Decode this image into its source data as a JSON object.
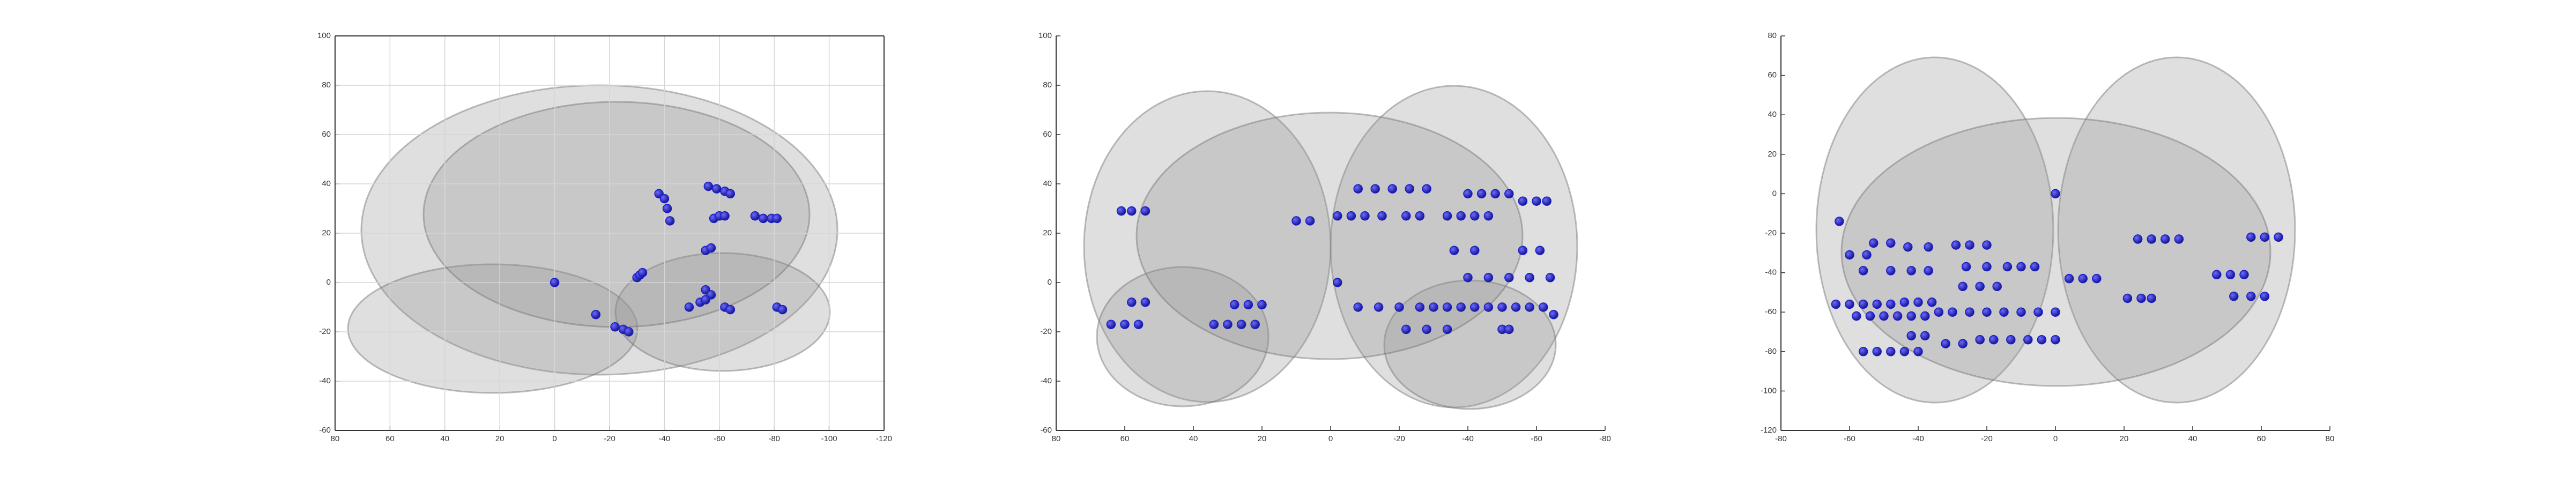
{
  "chart_data": [
    {
      "type": "scatter",
      "color": "#1c1cc8",
      "grid": true,
      "xlim": [
        80,
        -120
      ],
      "xticks": [
        80,
        60,
        40,
        20,
        0,
        -20,
        -40,
        -60,
        -80,
        -100,
        -120
      ],
      "ylim": [
        -60,
        100
      ],
      "yticks": [
        -60,
        -40,
        -20,
        0,
        20,
        40,
        60,
        80,
        100
      ],
      "x": [
        0,
        -38,
        -40,
        -41,
        -42,
        -56,
        -59,
        -62,
        -64,
        -58,
        -60,
        -62,
        -73,
        -76,
        -79,
        -81,
        -55,
        -57,
        -30,
        -31,
        -32,
        -55,
        -57,
        -15,
        -22,
        -25,
        -27,
        -49,
        -53,
        -55,
        -62,
        -64,
        -81,
        -83
      ],
      "values": [
        0,
        36,
        34,
        30,
        25,
        39,
        38,
        37,
        36,
        26,
        27,
        27,
        27,
        26,
        26,
        26,
        13,
        14,
        2,
        3,
        4,
        -3,
        -5,
        -13,
        -18,
        -19,
        -20,
        -10,
        -8,
        -7,
        -10,
        -11,
        -10,
        -11
      ]
    },
    {
      "type": "scatter",
      "color": "#1c1cc8",
      "grid": false,
      "xlim": [
        80,
        -80
      ],
      "xticks": [
        80,
        60,
        40,
        20,
        0,
        -20,
        -40,
        -60,
        -80
      ],
      "ylim": [
        -60,
        100
      ],
      "yticks": [
        -60,
        -40,
        -20,
        0,
        20,
        40,
        60,
        80,
        100
      ],
      "x": [
        61,
        58,
        54,
        10,
        6,
        -2,
        -6,
        -10,
        -15,
        -22,
        -26,
        -8,
        -13,
        -18,
        -23,
        -28,
        -34,
        -38,
        -42,
        -46,
        -40,
        -44,
        -48,
        -52,
        -56,
        -60,
        -63,
        -36,
        -42,
        -56,
        -61,
        -40,
        -46,
        -52,
        -58,
        -64,
        -2,
        -8,
        -14,
        -20,
        -26,
        -30,
        -34,
        -38,
        -42,
        -46,
        -50,
        -54,
        -58,
        -62,
        -22,
        -28,
        -34,
        -50,
        -52,
        -65,
        58,
        54,
        64,
        60,
        56,
        34,
        30,
        26,
        22,
        28,
        24,
        20
      ],
      "values": [
        29,
        29,
        29,
        25,
        25,
        27,
        27,
        27,
        27,
        27,
        27,
        38,
        38,
        38,
        38,
        38,
        27,
        27,
        27,
        27,
        36,
        36,
        36,
        36,
        33,
        33,
        33,
        13,
        13,
        13,
        13,
        2,
        2,
        2,
        2,
        2,
        0,
        -10,
        -10,
        -10,
        -10,
        -10,
        -10,
        -10,
        -10,
        -10,
        -10,
        -10,
        -10,
        -10,
        -19,
        -19,
        -19,
        -19,
        -19,
        -13,
        -8,
        -8,
        -17,
        -17,
        -17,
        -17,
        -17,
        -17,
        -17,
        -9,
        -9,
        -9
      ]
    },
    {
      "type": "scatter",
      "color": "#1c1cc8",
      "grid": false,
      "xlim": [
        -80,
        80
      ],
      "xticks": [
        -80,
        -60,
        -40,
        -20,
        0,
        20,
        40,
        60,
        80
      ],
      "ylim": [
        -120,
        80
      ],
      "yticks": [
        -120,
        -100,
        -80,
        -60,
        -40,
        -20,
        0,
        20,
        40,
        60,
        80
      ],
      "x": [
        0,
        -63,
        -60,
        -55,
        -53,
        -48,
        -43,
        -37,
        -29,
        -25,
        -20,
        -56,
        -48,
        -42,
        -37,
        -26,
        -20,
        -14,
        -10,
        -6,
        4,
        8,
        12,
        24,
        28,
        32,
        36,
        57,
        61,
        65,
        47,
        51,
        55,
        52,
        57,
        61,
        21,
        25,
        28,
        -64,
        -60,
        -56,
        -52,
        -48,
        -44,
        -40,
        -36,
        -27,
        -22,
        -17,
        -58,
        -54,
        -50,
        -46,
        -42,
        -38,
        -34,
        -30,
        -25,
        -20,
        -15,
        -10,
        -5,
        0,
        -56,
        -52,
        -48,
        -44,
        -40,
        -32,
        -27,
        -22,
        -18,
        -13,
        -8,
        -4,
        0,
        -42,
        -38
      ],
      "values": [
        0,
        -14,
        -31,
        -31,
        -25,
        -25,
        -27,
        -27,
        -26,
        -26,
        -26,
        -39,
        -39,
        -39,
        -39,
        -37,
        -37,
        -37,
        -37,
        -37,
        -43,
        -43,
        -43,
        -23,
        -23,
        -23,
        -23,
        -22,
        -22,
        -22,
        -41,
        -41,
        -41,
        -52,
        -52,
        -52,
        -53,
        -53,
        -53,
        -56,
        -56,
        -56,
        -56,
        -56,
        -55,
        -55,
        -55,
        -47,
        -47,
        -47,
        -62,
        -62,
        -62,
        -62,
        -62,
        -62,
        -60,
        -60,
        -60,
        -60,
        -60,
        -60,
        -60,
        -60,
        -80,
        -80,
        -80,
        -80,
        -80,
        -76,
        -76,
        -74,
        -74,
        -74,
        -74,
        -74,
        -74,
        -72,
        -72
      ]
    }
  ]
}
